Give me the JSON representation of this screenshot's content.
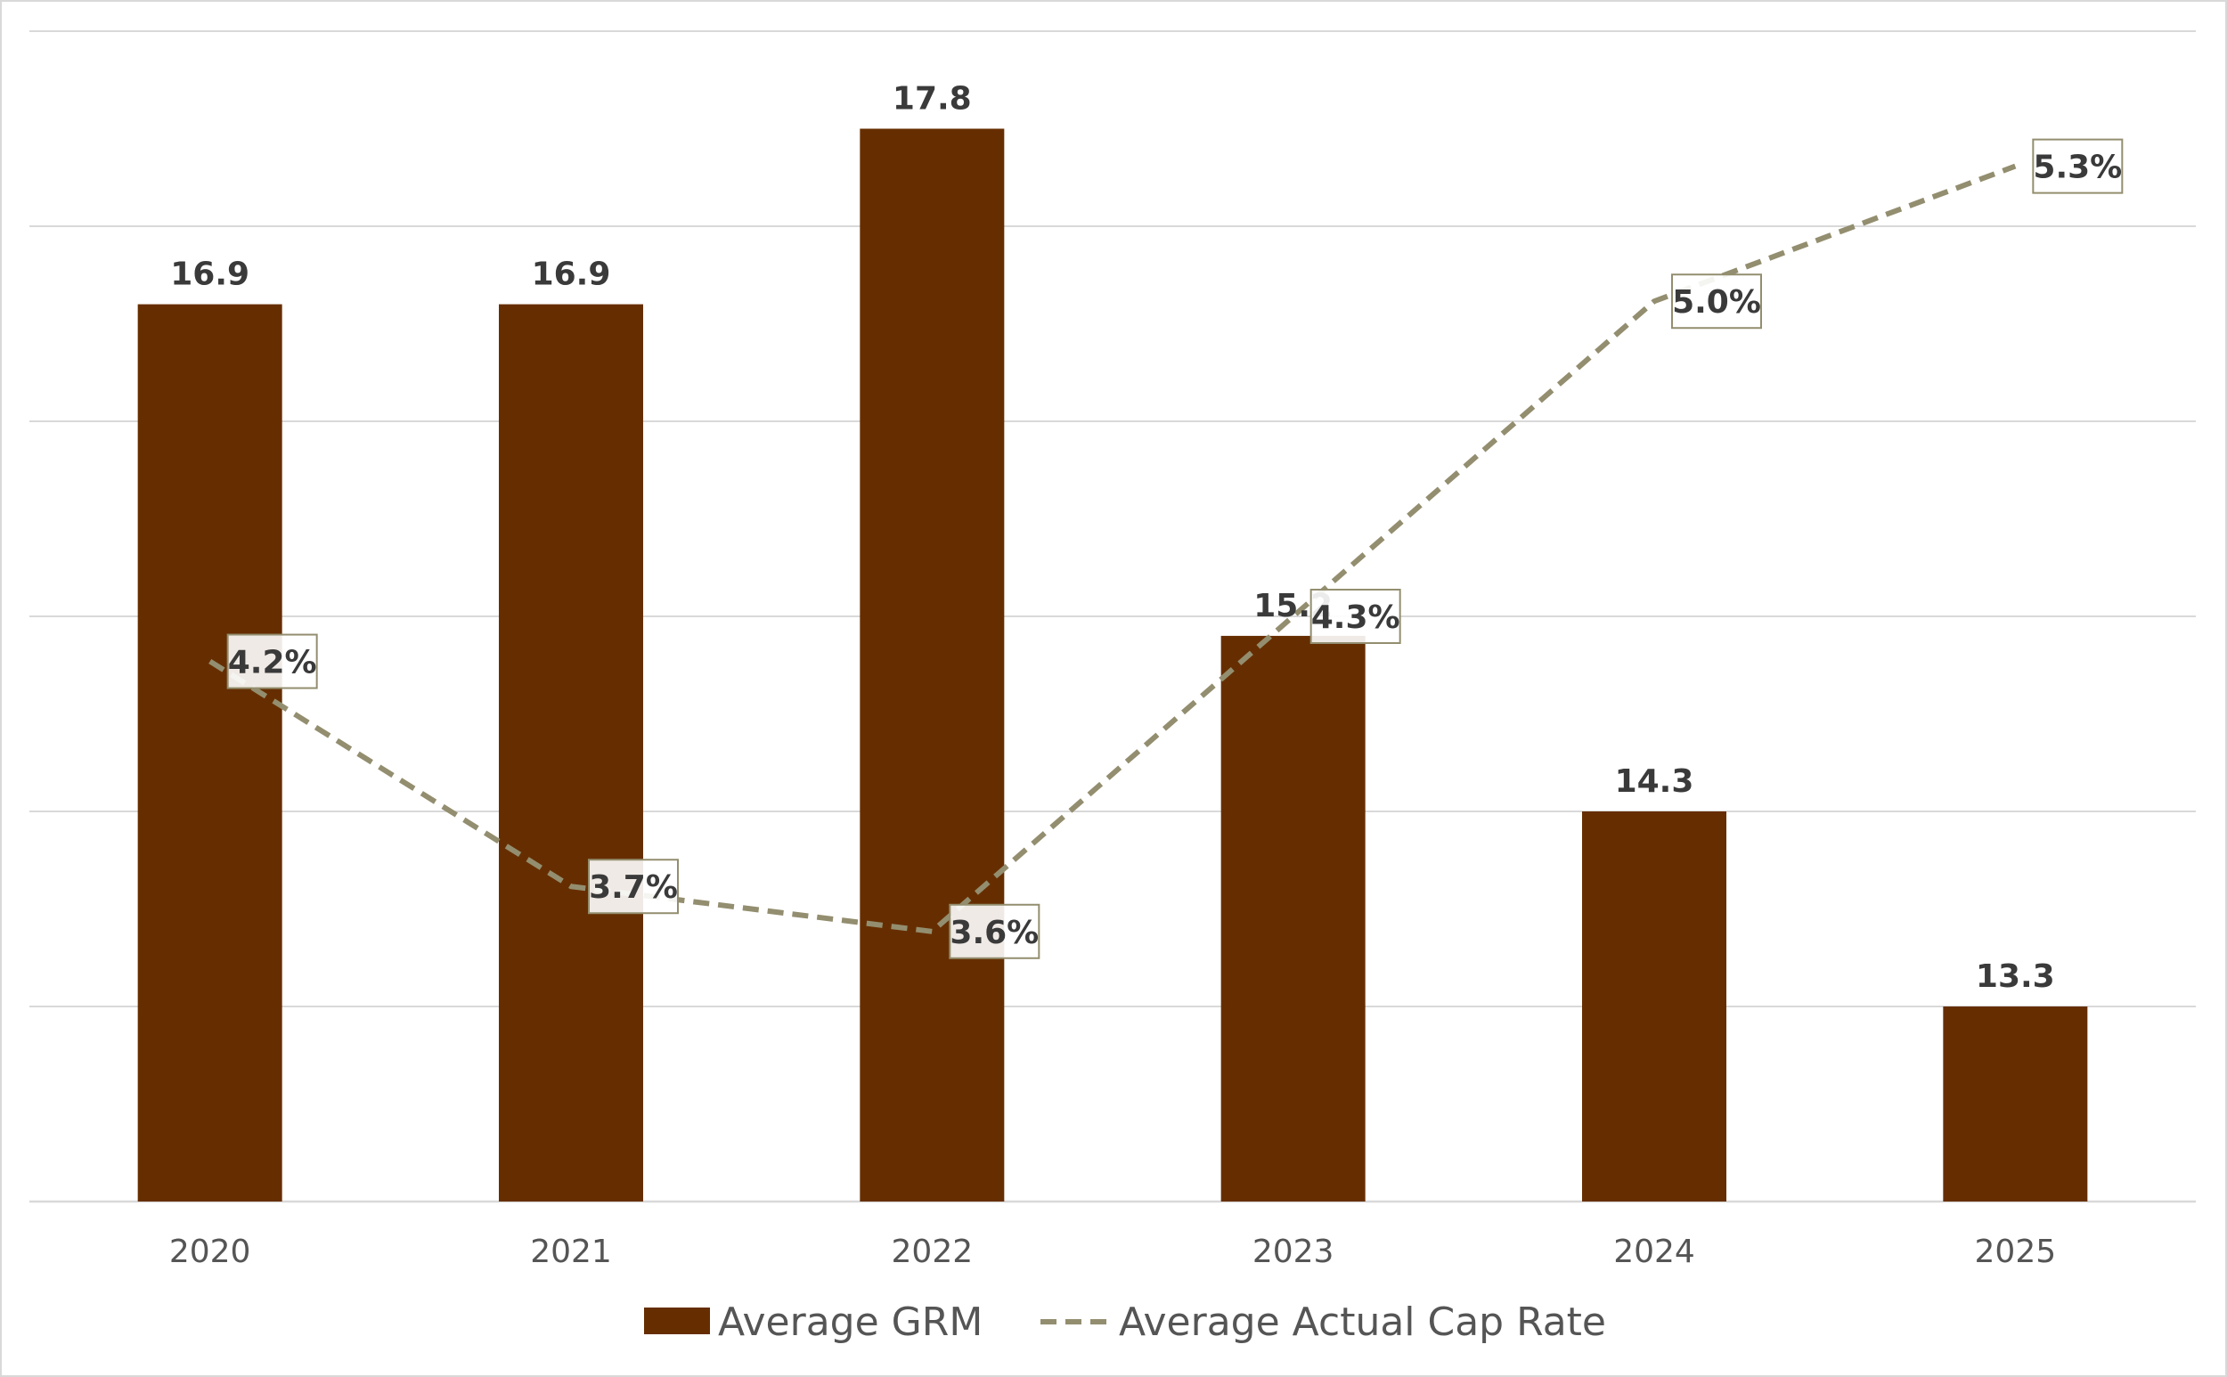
{
  "chart_data": {
    "type": "bar",
    "title": "",
    "xlabel": "",
    "ylabel": "",
    "categories": [
      "2020",
      "2021",
      "2022",
      "2023",
      "2024",
      "2025"
    ],
    "series": [
      {
        "name": "Average GRM",
        "type": "bar",
        "values": [
          16.9,
          16.9,
          17.8,
          15.2,
          14.3,
          13.3
        ],
        "labels": [
          "16.9",
          "16.9",
          "17.8",
          "15.2",
          "14.3",
          "13.3"
        ],
        "color": "#662e00"
      },
      {
        "name": "Average Actual Cap Rate",
        "type": "line",
        "values": [
          4.2,
          3.7,
          3.6,
          4.3,
          5.0,
          5.3
        ],
        "labels": [
          "4.2%",
          "3.7%",
          "3.6%",
          "4.3%",
          "5.0%",
          "5.3%"
        ],
        "color": "#938e6f",
        "line_style": "dashed"
      }
    ],
    "ylim_bar": [
      12.3,
      18.3
    ],
    "ylim_line": [
      3.0,
      5.6
    ],
    "grid": true,
    "legend_position": "bottom"
  }
}
